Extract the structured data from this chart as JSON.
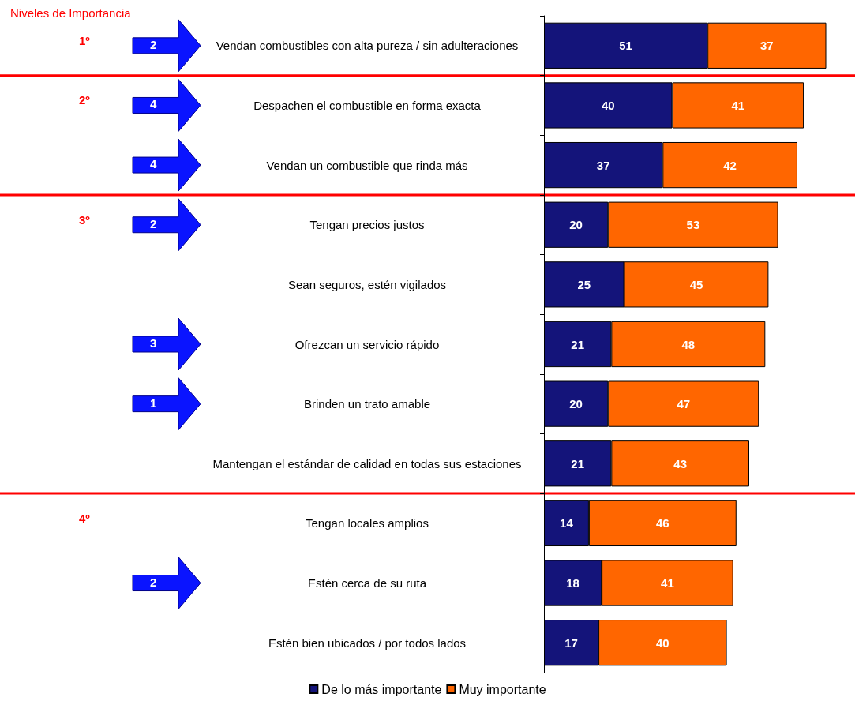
{
  "chart_data": {
    "type": "bar",
    "orientation": "horizontal",
    "stacked": true,
    "title": "Niveles de Importancia",
    "categories": [
      "Vendan combustibles con alta pureza / sin adulteraciones",
      "Despachen el combustible en forma exacta",
      "Vendan un combustible que rinda más",
      "Tengan precios justos",
      "Sean seguros, estén vigilados",
      "Ofrezcan un servicio rápido",
      "Brinden un trato amable",
      "Mantengan el estándar de calidad en todas sus estaciones",
      "Tengan locales amplios",
      "Estén cerca de su ruta",
      "Estén bien ubicados / por todos lados"
    ],
    "series": [
      {
        "name": "De lo más importante",
        "color": "#14147a",
        "values": [
          51,
          40,
          37,
          20,
          25,
          21,
          20,
          21,
          14,
          18,
          17
        ]
      },
      {
        "name": "Muy importante",
        "color": "#ff6600",
        "values": [
          37,
          41,
          42,
          53,
          45,
          48,
          47,
          43,
          46,
          41,
          40
        ]
      }
    ],
    "data_labels": true,
    "xlim": [
      0,
      96
    ],
    "tick_labels": "y",
    "legend": "bottom",
    "grid": false,
    "annotations": [
      "1º",
      "2",
      "2º",
      "4",
      "4",
      "3º",
      "2",
      "3",
      "1",
      "4º",
      "2"
    ]
  }
}
